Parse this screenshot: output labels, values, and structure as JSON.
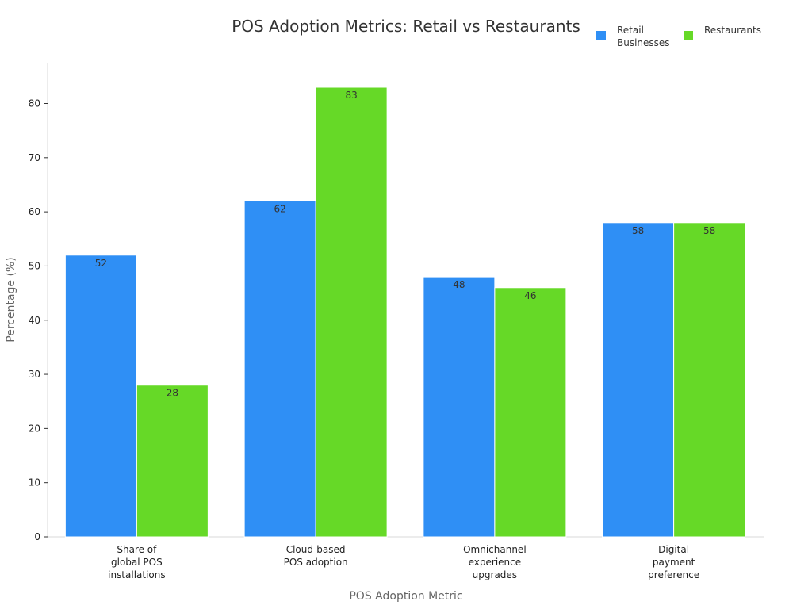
{
  "chart_data": {
    "type": "bar",
    "title": "POS Adoption Metrics: Retail vs Restaurants",
    "xlabel": "POS Adoption Metric",
    "ylabel": "Percentage (%)",
    "ylim": [
      0,
      85
    ],
    "yticks": [
      0,
      10,
      20,
      30,
      40,
      50,
      60,
      70,
      80
    ],
    "grid": false,
    "legend_position": "top-right",
    "categories": [
      [
        "Share of",
        "global POS",
        "installations"
      ],
      [
        "Cloud-based",
        "POS adoption"
      ],
      [
        "Omnichannel",
        "experience",
        "upgrades"
      ],
      [
        "Digital",
        "payment",
        "preference"
      ]
    ],
    "series": [
      {
        "name": [
          "Retail",
          "Businesses"
        ],
        "color": "#2f8ff5",
        "values": [
          52,
          62,
          48,
          58
        ]
      },
      {
        "name": [
          "Restaurants"
        ],
        "color": "#66d927",
        "values": [
          28,
          83,
          46,
          58
        ]
      }
    ]
  }
}
